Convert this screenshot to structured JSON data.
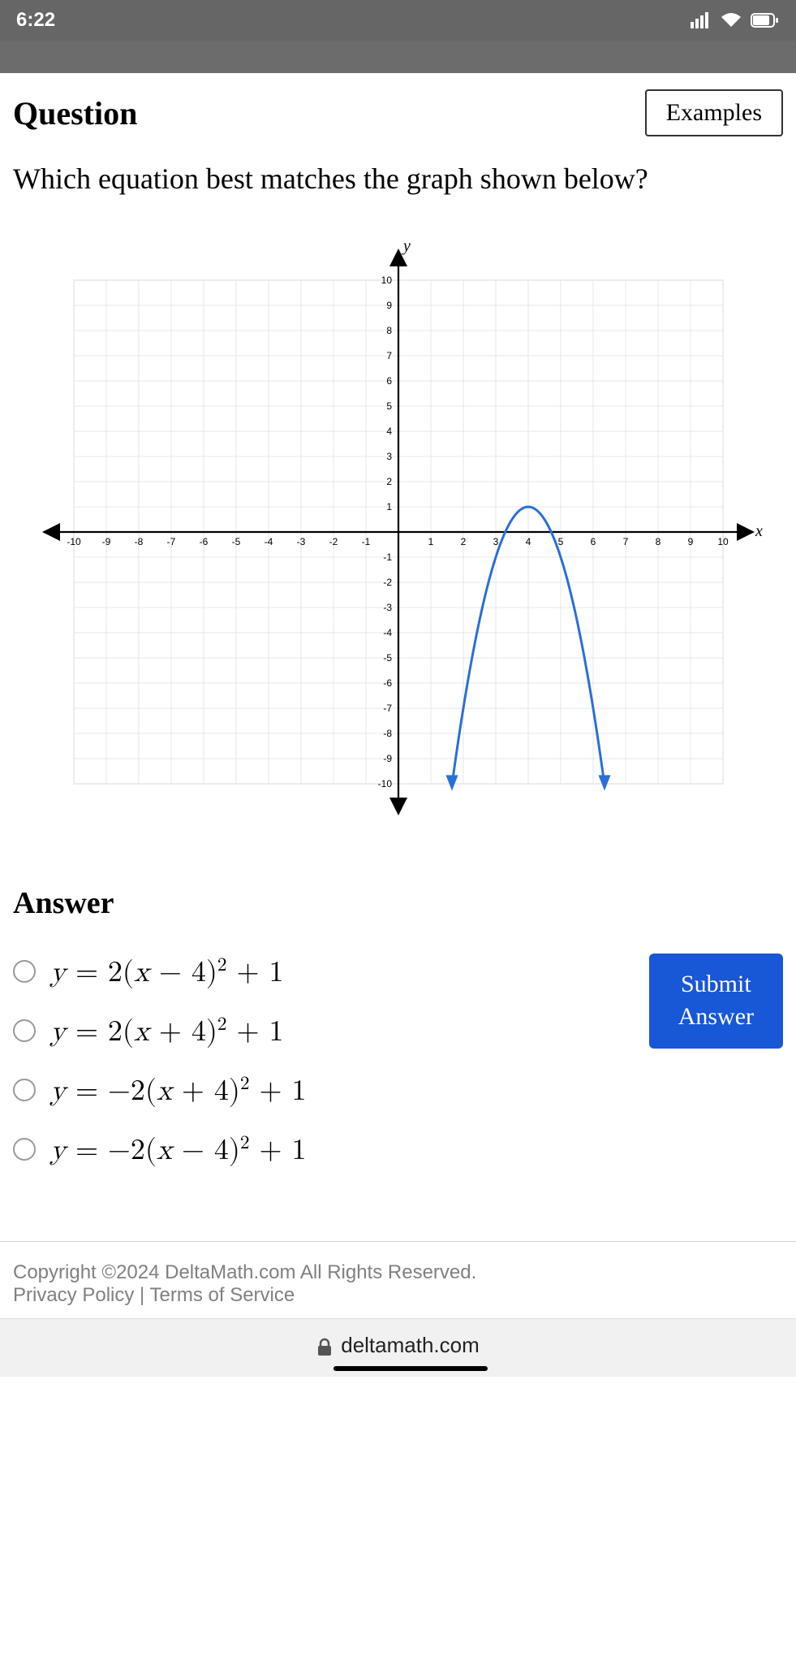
{
  "statusbar": {
    "time": "6:22"
  },
  "header": {
    "title": "Question",
    "examples_label": "Examples"
  },
  "question_text": "Which equation best matches the graph shown below?",
  "chart": {
    "type": "parabola-plot",
    "x_label": "x",
    "y_label": "y",
    "xlim": [
      -10,
      10
    ],
    "ylim": [
      -10,
      10
    ],
    "xticks": [
      -10,
      -9,
      -8,
      -7,
      -6,
      -5,
      -4,
      -3,
      -2,
      -1,
      1,
      2,
      3,
      4,
      5,
      6,
      7,
      8,
      9,
      10
    ],
    "yticks": [
      -10,
      -9,
      -8,
      -7,
      -6,
      -5,
      -4,
      -3,
      -2,
      -1,
      1,
      2,
      3,
      4,
      5,
      6,
      7,
      8,
      9,
      10
    ],
    "grid_color": "#e7e7e7",
    "axis_color": "#000000",
    "tick_label_fontsize": 10,
    "curve": {
      "vertex": [
        4,
        1
      ],
      "a": -2,
      "color": "#2b6fd6",
      "line_width": 3,
      "x_draw_range": [
        1.65,
        6.35
      ],
      "arrow_ends": true
    }
  },
  "answer": {
    "heading": "Answer",
    "options": [
      "y = 2(x − 4)² + 1",
      "y = 2(x + 4)² + 1",
      "y = −2(x + 4)² + 1",
      "y = −2(x − 4)² + 1"
    ],
    "options_html": [
      "<i>y</i> = 2(<i>x</i> − 4)<sup>2</sup> + 1",
      "<i>y</i> = 2(<i>x</i> + 4)<sup>2</sup> + 1",
      "<i>y</i> = −2(<i>x</i> + 4)<sup>2</sup> + 1",
      "<i>y</i> = −2(<i>x</i> − 4)<sup>2</sup> + 1"
    ],
    "submit_label_line1": "Submit",
    "submit_label_line2": "Answer"
  },
  "footer": {
    "copyright": "Copyright ©2024 DeltaMath.com All Rights Reserved.",
    "privacy": "Privacy Policy",
    "terms": "Terms of Service"
  },
  "urlbar": {
    "host": "deltamath.com"
  },
  "colors": {
    "submit_bg": "#1857d6",
    "status_bg": "#666666"
  }
}
